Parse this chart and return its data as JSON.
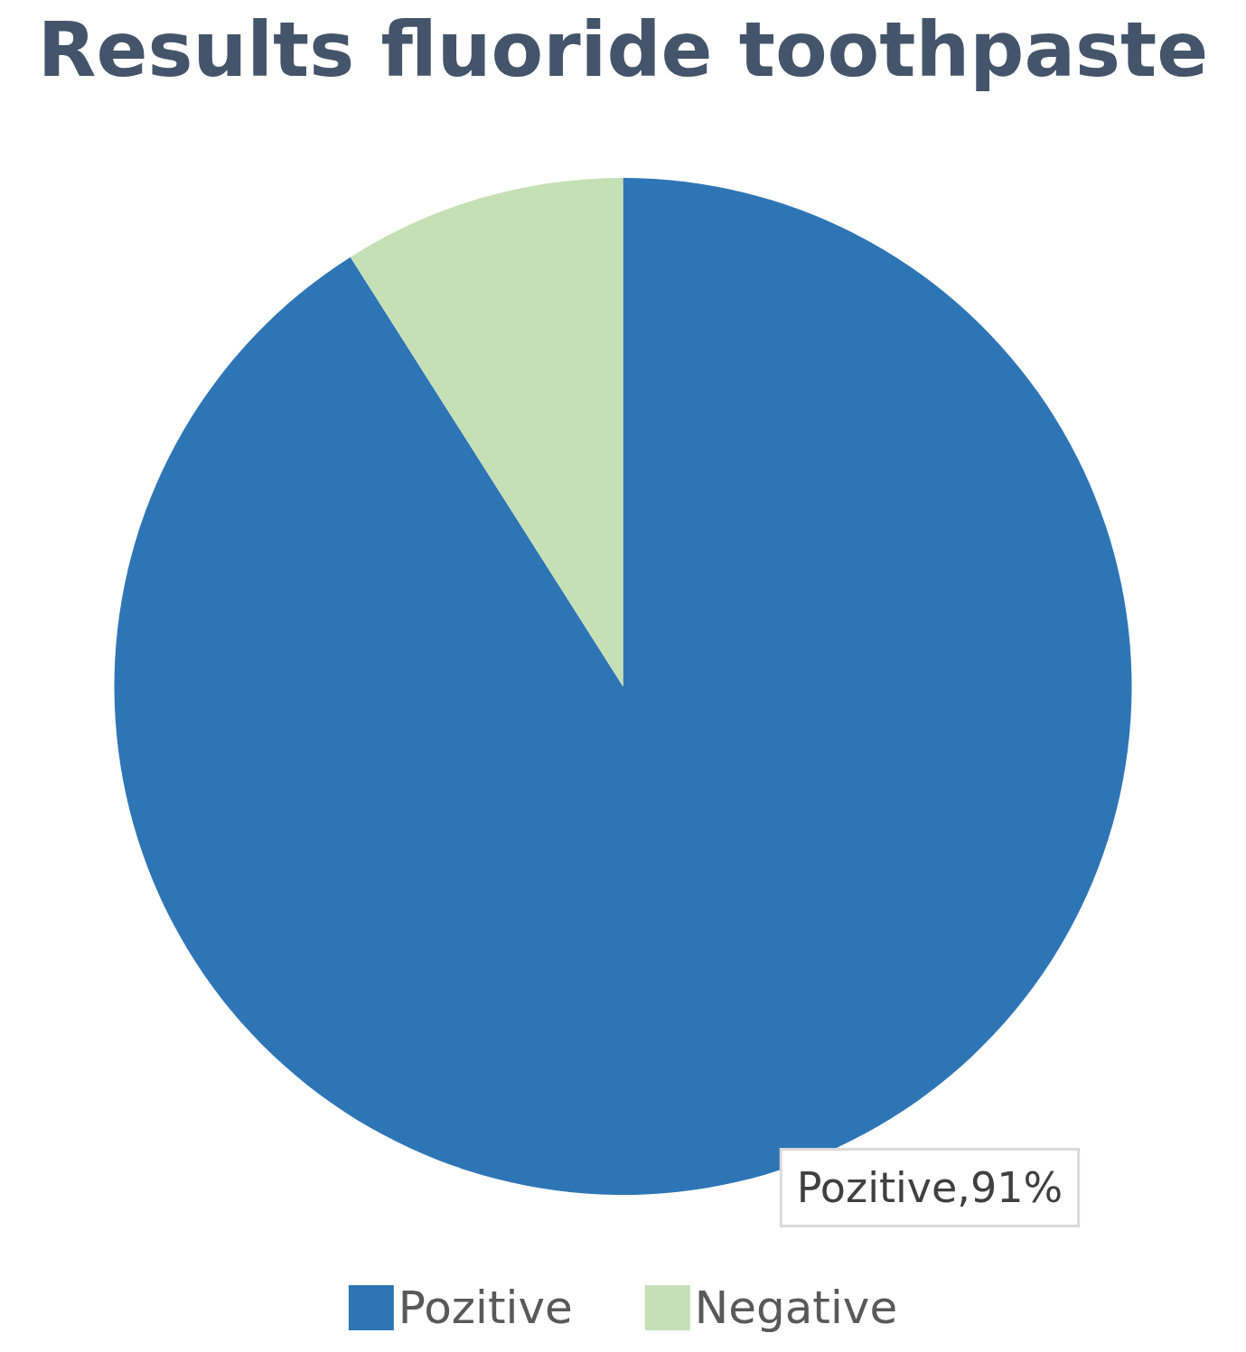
{
  "chart_data": {
    "type": "pie",
    "title": "Results fluoride toothpaste",
    "categories": [
      "Pozitive",
      "Negative"
    ],
    "values": [
      91,
      9
    ],
    "colors": [
      "#2e75b6",
      "#c5e0b4"
    ],
    "value_labels": [
      "Pozitive,91%",
      null
    ],
    "legend": "bottom"
  }
}
